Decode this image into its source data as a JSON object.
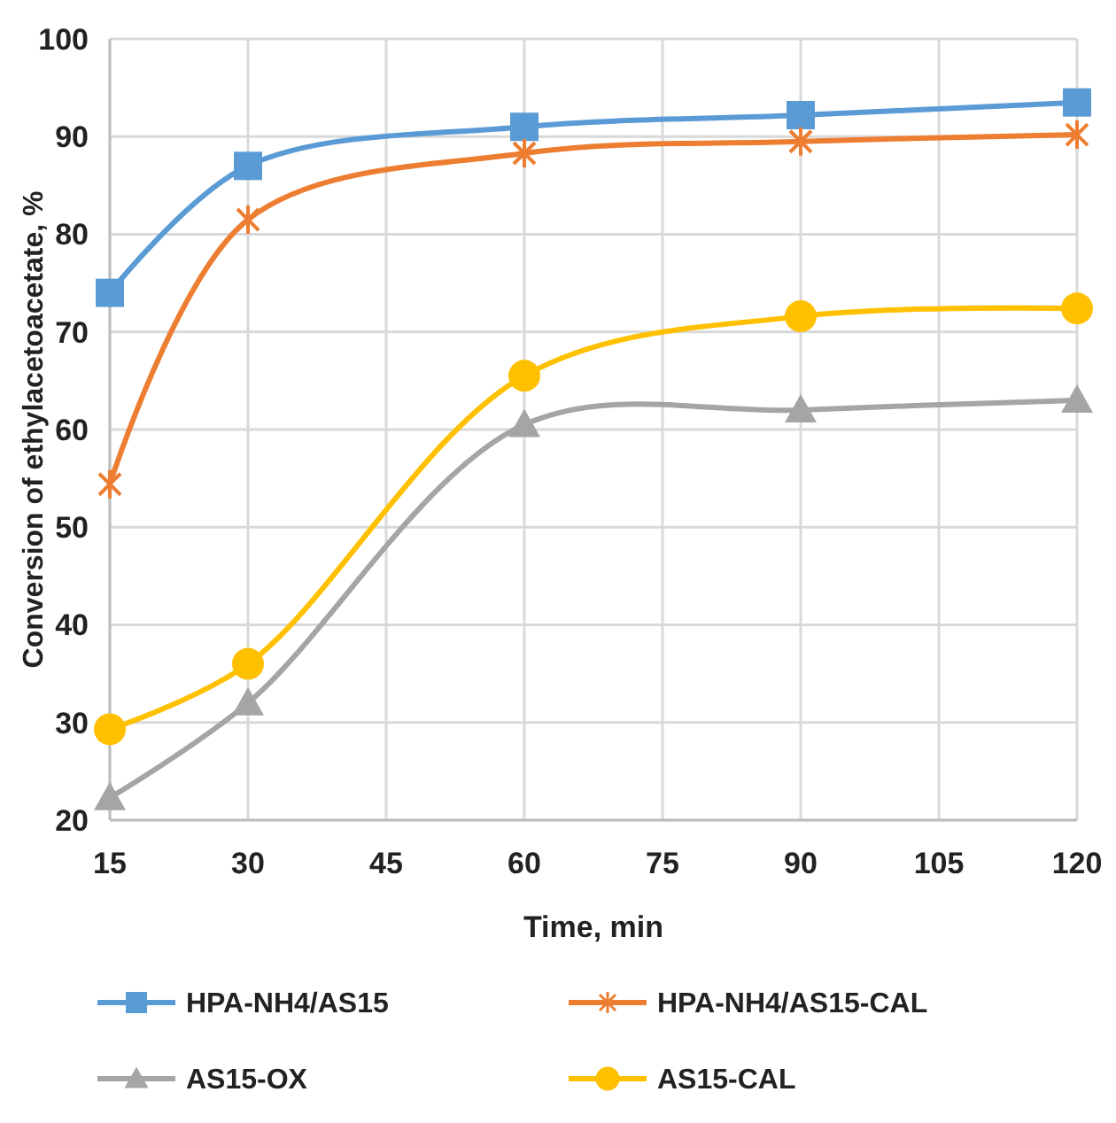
{
  "chart_data": {
    "type": "line",
    "xlabel": "Time, min",
    "ylabel": "Conversion of ethylacetoacetate, %",
    "x": [
      15,
      30,
      60,
      90,
      120
    ],
    "series": [
      {
        "name": "HPA-NH4/AS15",
        "color": "#5b9bd5",
        "marker": "square",
        "values": [
          74,
          87,
          91,
          92.2,
          93.5
        ]
      },
      {
        "name": "HPA-NH4/AS15-CAL",
        "color": "#ed7d31",
        "marker": "cross",
        "values": [
          54.4,
          81.5,
          88.3,
          89.5,
          90.2
        ]
      },
      {
        "name": "AS15-OX",
        "color": "#a5a5a5",
        "marker": "triangle",
        "values": [
          22.3,
          32,
          60.5,
          62,
          63
        ]
      },
      {
        "name": "AS15-CAL",
        "color": "#ffc000",
        "marker": "circle",
        "values": [
          29.3,
          36,
          65.5,
          71.6,
          72.4
        ]
      }
    ],
    "xlim": [
      15,
      120
    ],
    "xticks": [
      15,
      30,
      45,
      60,
      75,
      90,
      105,
      120
    ],
    "ylim": [
      20,
      100
    ],
    "yticks": [
      20,
      30,
      40,
      50,
      60,
      70,
      80,
      90,
      100
    ],
    "grid": true,
    "legend": "bottom",
    "line_style": "solid"
  }
}
